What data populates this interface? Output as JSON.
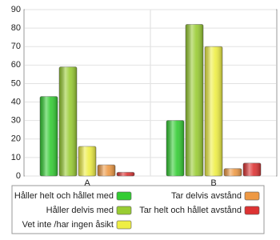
{
  "chart_data": {
    "type": "bar",
    "categories": [
      "A",
      "B"
    ],
    "series": [
      {
        "name": "Håller helt och hållet med",
        "color": "#33cc33",
        "values": [
          43,
          30
        ]
      },
      {
        "name": "Håller delvis med",
        "color": "#99cc33",
        "values": [
          59,
          82
        ]
      },
      {
        "name": "Vet inte /har ingen åsikt",
        "color": "#eeee44",
        "values": [
          16,
          70
        ]
      },
      {
        "name": "Tar delvis avstånd",
        "color": "#ee9944",
        "values": [
          6,
          4
        ]
      },
      {
        "name": "Tar helt och hållet avstånd",
        "color": "#dd3333",
        "values": [
          2,
          7
        ]
      }
    ],
    "ylim": [
      0,
      90
    ],
    "yticks": [
      0,
      10,
      20,
      30,
      40,
      50,
      60,
      70,
      80,
      90
    ],
    "grid": true
  }
}
